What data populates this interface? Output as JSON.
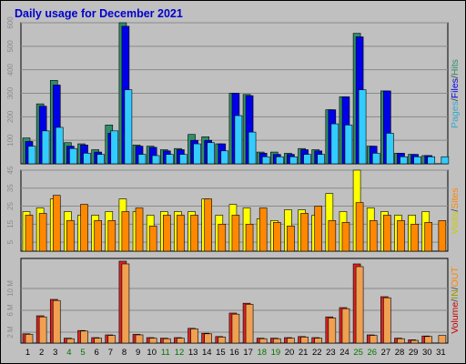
{
  "chart_data": {
    "type": "bar",
    "title": "Daily usage for December 2021",
    "categories": [
      "1",
      "2",
      "3",
      "4",
      "5",
      "6",
      "7",
      "8",
      "9",
      "10",
      "11",
      "12",
      "13",
      "14",
      "15",
      "16",
      "17",
      "18",
      "19",
      "20",
      "21",
      "22",
      "23",
      "24",
      "25",
      "26",
      "27",
      "28",
      "29",
      "30",
      "31"
    ],
    "weekend_days": [
      "4",
      "5",
      "11",
      "12",
      "18",
      "19",
      "25",
      "26"
    ],
    "panels": [
      {
        "name": "hits",
        "ylim": [
          0,
          600
        ],
        "yticks": [
          100,
          200,
          300,
          400,
          500,
          600
        ],
        "side_label": "Pages / Files / Hits",
        "series": [
          {
            "name": "Hits",
            "color": "#2f8f6a",
            "values": [
              110,
              255,
              355,
              90,
              85,
              60,
              165,
              600,
              80,
              75,
              60,
              65,
              125,
              115,
              85,
              300,
              295,
              50,
              50,
              45,
              65,
              60,
              230,
              285,
              555,
              75,
              310,
              45,
              40,
              35,
              0
            ]
          },
          {
            "name": "Files",
            "color": "#0000e8",
            "values": [
              95,
              245,
              335,
              75,
              80,
              50,
              130,
              585,
              75,
              70,
              55,
              60,
              100,
              100,
              85,
              300,
              290,
              45,
              40,
              40,
              60,
              55,
              230,
              285,
              540,
              75,
              310,
              45,
              40,
              35,
              0
            ]
          },
          {
            "name": "Pages",
            "color": "#33ccff",
            "values": [
              75,
              140,
              155,
              65,
              45,
              40,
              140,
              315,
              40,
              35,
              40,
              40,
              85,
              90,
              55,
              205,
              135,
              30,
              30,
              30,
              40,
              40,
              170,
              165,
              315,
              45,
              130,
              30,
              30,
              30,
              30
            ]
          }
        ]
      },
      {
        "name": "visits",
        "ylim": [
          0,
          45
        ],
        "yticks": [
          5,
          15,
          25,
          35,
          45
        ],
        "side_label": "Visits / Sites",
        "series": [
          {
            "name": "Visits",
            "color": "#ffff00",
            "values": [
              22,
              24,
              29,
              22,
              20,
              20,
              22,
              29,
              22,
              20,
              22,
              22,
              22,
              29,
              20,
              26,
              24,
              18,
              17,
              23,
              23,
              20,
              32,
              22,
              45,
              24,
              22,
              20,
              20,
              22,
              0
            ]
          },
          {
            "name": "Sites",
            "color": "#ff8800",
            "values": [
              20,
              21,
              31,
              17,
              26,
              17,
              17,
              22,
              24,
              14,
              20,
              20,
              20,
              29,
              15,
              20,
              15,
              24,
              16,
              14,
              21,
              25,
              17,
              16,
              27,
              17,
              20,
              17,
              15,
              16,
              17
            ]
          }
        ]
      },
      {
        "name": "volume",
        "ylim": [
          0,
          15.5
        ],
        "yticks": [
          2,
          6,
          10
        ],
        "ytick_suffix": " M",
        "side_label": "Volume / IN / OUT",
        "series": [
          {
            "name": "Volume",
            "color": "#dd2222",
            "values": [
              1.7,
              5.0,
              8.0,
              0.9,
              2.3,
              1.0,
              1.5,
              15.0,
              1.6,
              1.0,
              0.9,
              1.0,
              2.7,
              1.8,
              1.2,
              5.5,
              7.3,
              0.9,
              0.9,
              1.0,
              1.2,
              1.0,
              4.8,
              6.5,
              14.5,
              1.5,
              8.5,
              0.9,
              0.6,
              1.3,
              0
            ]
          },
          {
            "name": "OUT",
            "color": "#f0a050",
            "values": [
              1.6,
              4.8,
              7.8,
              0.8,
              2.2,
              0.9,
              1.4,
              14.5,
              1.5,
              0.9,
              0.8,
              0.9,
              2.6,
              1.7,
              1.1,
              5.3,
              7.1,
              0.8,
              0.8,
              0.9,
              1.1,
              0.9,
              4.6,
              6.3,
              14.0,
              1.4,
              8.3,
              0.8,
              0.5,
              1.2,
              1.4
            ]
          }
        ]
      }
    ]
  },
  "legend_labels": {
    "pages": "Pages",
    "files": "Files",
    "hits": "Hits",
    "visits": "Visits",
    "sites": "Sites",
    "volume": "Volume",
    "in": "IN",
    "out": "OUT",
    "sep": "/"
  },
  "colors": {
    "background": "#c0c0c0",
    "title": "#0000cc",
    "weekday_label": "#000000",
    "weekend_label": "#007700"
  }
}
